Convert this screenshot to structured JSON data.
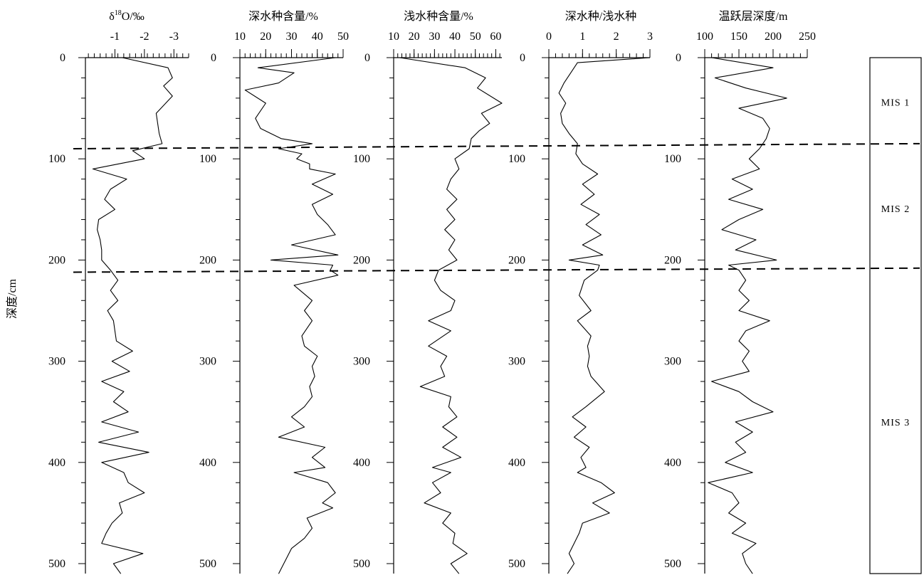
{
  "chart_data": {
    "type": "line",
    "ylabel": "深度/cm",
    "ylim": [
      0,
      500
    ],
    "y_ticks": [
      0,
      100,
      200,
      300,
      400,
      500
    ],
    "panels": [
      {
        "title_parts": [
          "δ",
          "18",
          "O/‰"
        ],
        "xlim": [
          0,
          -3.5
        ],
        "x_ticks": [
          -1,
          -2,
          -3
        ],
        "x_tick_labels": [
          "-1",
          "-2",
          "-3"
        ],
        "depth": [
          0,
          10,
          20,
          28,
          38,
          55,
          75,
          85,
          92,
          100,
          110,
          120,
          130,
          140,
          150,
          160,
          170,
          180,
          190,
          200,
          210,
          220,
          230,
          240,
          250,
          260,
          270,
          280,
          290,
          300,
          310,
          320,
          330,
          340,
          350,
          360,
          370,
          380,
          390,
          400,
          410,
          420,
          430,
          440,
          450,
          460,
          470,
          480,
          490,
          500,
          510
        ],
        "values": [
          -1.25,
          -2.8,
          -2.95,
          -2.65,
          -2.95,
          -2.4,
          -2.5,
          -2.6,
          -1.6,
          -2.0,
          -0.25,
          -1.4,
          -0.85,
          -0.65,
          -1.0,
          -0.45,
          -0.4,
          -0.5,
          -0.55,
          -0.55,
          -0.85,
          -1.1,
          -0.85,
          -1.1,
          -0.75,
          -0.95,
          -1.0,
          -1.05,
          -1.6,
          -0.9,
          -1.5,
          -0.55,
          -1.3,
          -0.95,
          -1.45,
          -0.55,
          -1.8,
          -0.45,
          -2.15,
          -0.55,
          -1.3,
          -1.45,
          -2.0,
          -1.15,
          -1.25,
          -0.9,
          -0.7,
          -0.55,
          -1.95,
          -0.95,
          -1.2
        ]
      },
      {
        "title": "深水种含量/%",
        "xlim": [
          10,
          50
        ],
        "x_ticks": [
          10,
          20,
          30,
          40,
          50
        ],
        "depth": [
          0,
          10,
          15,
          25,
          32,
          45,
          60,
          70,
          80,
          85,
          90,
          95,
          100,
          105,
          110,
          115,
          125,
          135,
          145,
          155,
          165,
          175,
          185,
          195,
          200,
          205,
          210,
          215,
          225,
          240,
          250,
          260,
          275,
          285,
          295,
          305,
          315,
          325,
          335,
          345,
          355,
          365,
          375,
          385,
          395,
          405,
          410,
          420,
          430,
          440,
          445,
          455,
          465,
          475,
          485,
          495,
          505,
          510
        ],
        "values": [
          47,
          17,
          31,
          25,
          12,
          20,
          16,
          18,
          26,
          38,
          25,
          34,
          32,
          37,
          37,
          47,
          38,
          46,
          38,
          40,
          44,
          47,
          30,
          48,
          22,
          46,
          45,
          48,
          31,
          38,
          35,
          38,
          34,
          35,
          40,
          38,
          39,
          37,
          38,
          35,
          30,
          35,
          25,
          43,
          38,
          43,
          31,
          44,
          47,
          42,
          46,
          36,
          38,
          35,
          30,
          28,
          26,
          25
        ]
      },
      {
        "title": "浅水种含量/%",
        "xlim": [
          10,
          63
        ],
        "x_ticks": [
          10,
          20,
          30,
          40,
          50,
          60
        ],
        "depth": [
          0,
          10,
          20,
          30,
          45,
          55,
          65,
          72,
          80,
          90,
          100,
          110,
          120,
          130,
          140,
          150,
          160,
          170,
          180,
          190,
          200,
          210,
          220,
          230,
          240,
          250,
          260,
          270,
          285,
          295,
          305,
          315,
          325,
          335,
          345,
          355,
          365,
          375,
          385,
          395,
          405,
          410,
          420,
          430,
          440,
          450,
          460,
          470,
          480,
          490,
          500,
          510
        ],
        "values": [
          13,
          45,
          55,
          51,
          63,
          53,
          57,
          52,
          48,
          47,
          40,
          42,
          38,
          36,
          41,
          36,
          40,
          35,
          40,
          37,
          41,
          32,
          30,
          33,
          40,
          38,
          27,
          38,
          27,
          36,
          33,
          35,
          23,
          38,
          37,
          41,
          34,
          41,
          34,
          43,
          29,
          38,
          29,
          33,
          25,
          38,
          34,
          40,
          39,
          46,
          38,
          42
        ]
      },
      {
        "title": "深水种/浅水种",
        "xlim": [
          0,
          3
        ],
        "x_ticks": [
          0,
          1,
          2,
          3
        ],
        "depth": [
          0,
          5,
          15,
          25,
          35,
          45,
          55,
          65,
          75,
          85,
          95,
          105,
          115,
          125,
          135,
          145,
          155,
          165,
          175,
          185,
          195,
          200,
          205,
          210,
          220,
          235,
          250,
          260,
          275,
          285,
          295,
          305,
          315,
          330,
          345,
          355,
          365,
          375,
          385,
          395,
          405,
          410,
          420,
          430,
          440,
          450,
          460,
          470,
          480,
          490,
          500,
          510
        ],
        "values": [
          3.0,
          0.85,
          0.65,
          0.45,
          0.3,
          0.5,
          0.35,
          0.4,
          0.6,
          0.85,
          0.8,
          1.0,
          1.45,
          1.0,
          1.35,
          0.95,
          1.5,
          1.1,
          1.55,
          1.0,
          1.6,
          0.6,
          1.5,
          1.45,
          1.05,
          0.9,
          1.25,
          0.85,
          1.25,
          1.15,
          1.2,
          1.15,
          1.25,
          1.65,
          1.1,
          0.7,
          1.1,
          0.75,
          1.2,
          0.95,
          1.1,
          0.85,
          1.55,
          1.95,
          1.3,
          1.8,
          1.0,
          0.9,
          0.75,
          0.6,
          0.75,
          0.55
        ]
      },
      {
        "title": "温跃层深度/m",
        "xlim": [
          100,
          250
        ],
        "x_ticks": [
          100,
          150,
          200,
          250
        ],
        "depth": [
          0,
          10,
          20,
          30,
          40,
          50,
          60,
          70,
          80,
          90,
          100,
          110,
          120,
          130,
          140,
          150,
          160,
          170,
          180,
          190,
          200,
          205,
          210,
          220,
          230,
          240,
          250,
          260,
          270,
          280,
          290,
          300,
          310,
          320,
          330,
          340,
          350,
          360,
          370,
          380,
          390,
          400,
          410,
          420,
          430,
          440,
          450,
          460,
          470,
          480,
          490,
          500,
          510
        ],
        "values": [
          110,
          200,
          115,
          160,
          220,
          150,
          185,
          195,
          190,
          180,
          165,
          180,
          140,
          170,
          135,
          185,
          150,
          125,
          175,
          145,
          205,
          135,
          150,
          160,
          150,
          165,
          150,
          195,
          160,
          150,
          165,
          155,
          165,
          110,
          150,
          170,
          200,
          145,
          170,
          145,
          160,
          130,
          170,
          105,
          140,
          150,
          135,
          160,
          140,
          175,
          155,
          160,
          170
        ]
      }
    ],
    "boundaries": [
      {
        "depth_start": 90,
        "depth_end": 85
      },
      {
        "depth_start": 212,
        "depth_end": 208
      }
    ],
    "stages": [
      {
        "label": "MIS 1",
        "from": 0,
        "to": 88
      },
      {
        "label": "MIS 2",
        "from": 88,
        "to": 210
      },
      {
        "label": "MIS 3",
        "from": 210,
        "to": 510
      }
    ]
  }
}
